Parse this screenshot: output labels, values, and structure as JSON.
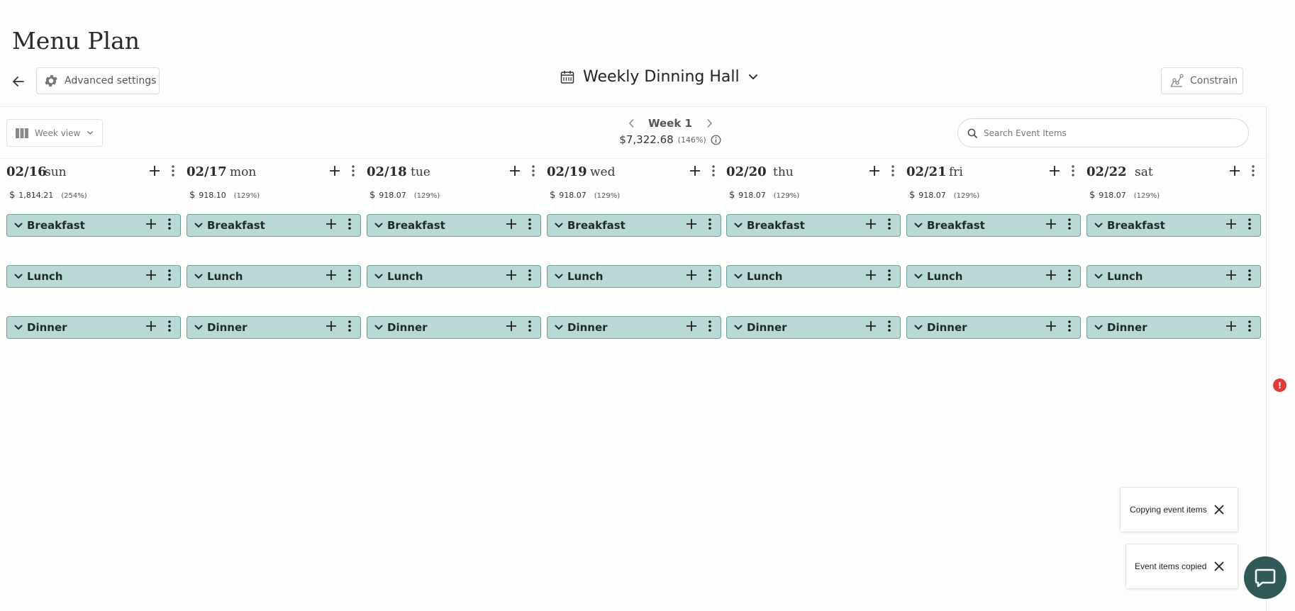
{
  "page": {
    "title": "Menu Plan"
  },
  "header": {
    "back_icon": "arrow-left-icon",
    "advanced_settings_label": "Advanced settings",
    "advanced_settings_icon": "gear-icon",
    "plan_name": "Weekly Dinning Hall",
    "plan_icon": "calendar-icon",
    "constrain_label": "Constrain",
    "constrain_icon": "sliders-icon"
  },
  "toolbar": {
    "view_label": "Week view",
    "week_label": "Week 1",
    "week_total": "$7,322.68",
    "week_pct": "(146%)",
    "search_placeholder": "Search Event Items"
  },
  "days": [
    {
      "date": "02/16",
      "name": "sun",
      "currency": "$",
      "amount": "1,814.21",
      "pct": "(254%)"
    },
    {
      "date": "02/17",
      "name": "mon",
      "currency": "$",
      "amount": "918.10",
      "pct": "(129%)"
    },
    {
      "date": "02/18",
      "name": "tue",
      "currency": "$",
      "amount": "918.07",
      "pct": "(129%)"
    },
    {
      "date": "02/19",
      "name": "wed",
      "currency": "$",
      "amount": "918.07",
      "pct": "(129%)"
    },
    {
      "date": "02/20",
      "name": "thu",
      "currency": "$",
      "amount": "918.07",
      "pct": "(129%)"
    },
    {
      "date": "02/21",
      "name": "fri",
      "currency": "$",
      "amount": "918.07",
      "pct": "(129%)"
    },
    {
      "date": "02/22",
      "name": "sat",
      "currency": "$",
      "amount": "918.07",
      "pct": "(129%)"
    }
  ],
  "meals": [
    "Breakfast",
    "Lunch",
    "Dinner"
  ],
  "toasts": [
    {
      "text": "Copying event items"
    },
    {
      "text": "Event items copied"
    }
  ],
  "alert": {
    "text": "!"
  },
  "colors": {
    "meal_bar": "#b8d9d6",
    "meal_border": "#6f9d98",
    "chat": "#2f5a59",
    "alert": "#e03b3b"
  }
}
